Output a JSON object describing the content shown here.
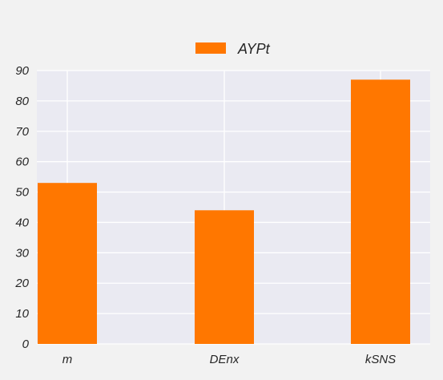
{
  "chart_data": {
    "type": "bar",
    "categories": [
      "m",
      "DEnx",
      "kSNS"
    ],
    "series": [
      {
        "name": "AYPt",
        "values": [
          53,
          44,
          87
        ]
      }
    ],
    "ylim": [
      0,
      90
    ],
    "yticks": [
      0,
      10,
      20,
      30,
      40,
      50,
      60,
      70,
      80,
      90
    ],
    "grid": true,
    "legend_position": "top-center",
    "colors": {
      "bar": "#ff7700",
      "plot_background": "#eaeaf2",
      "grid": "#ffffff",
      "figure_background": "#f2f2f2",
      "text": "#262626"
    }
  }
}
